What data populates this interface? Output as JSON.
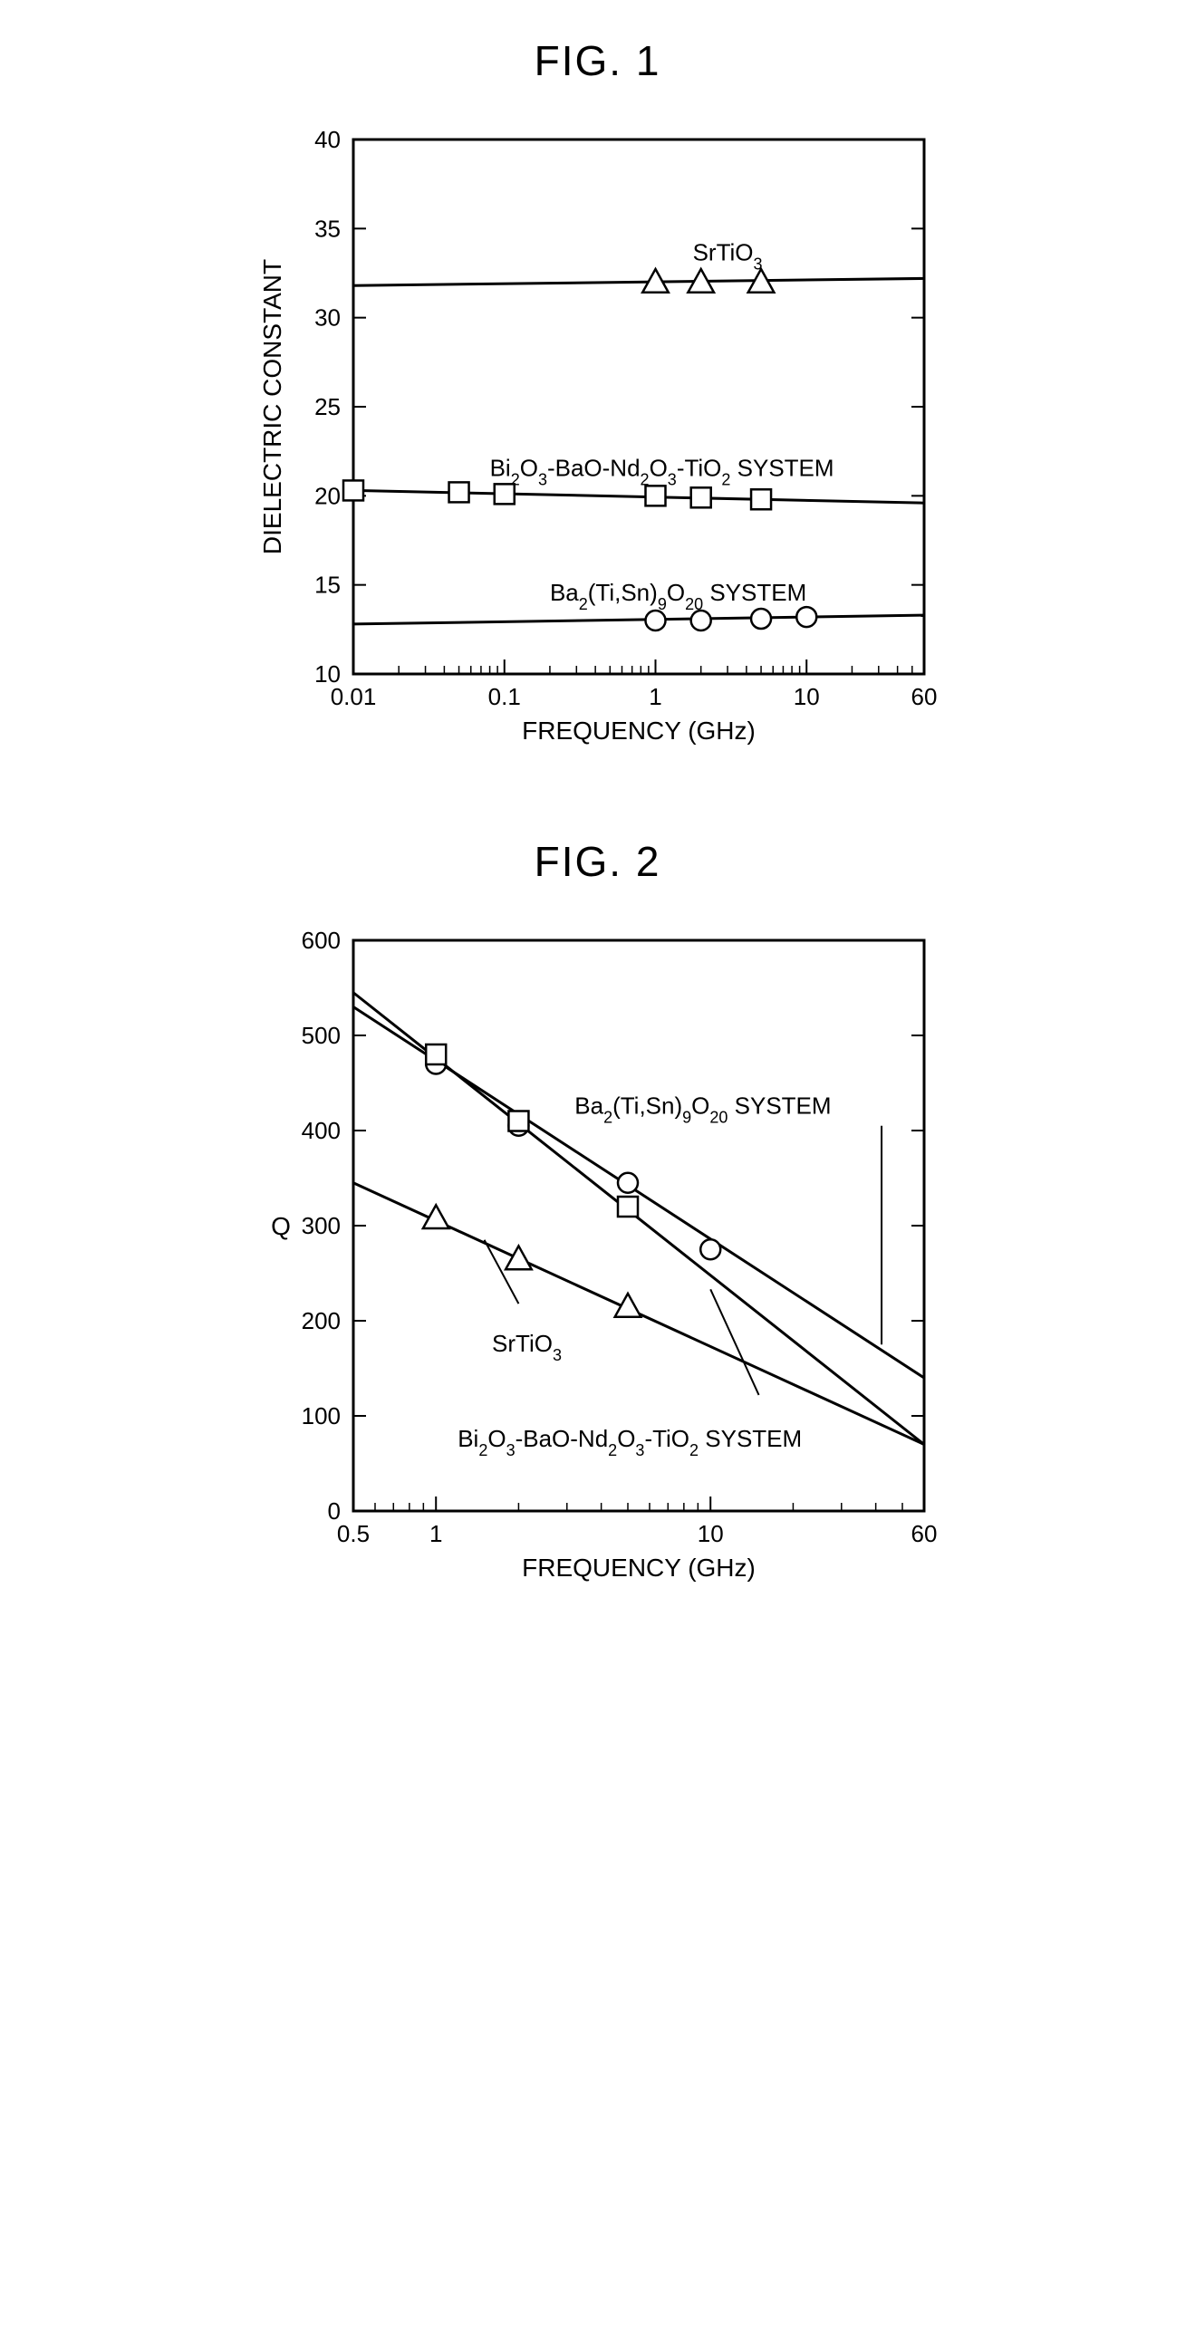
{
  "fig1": {
    "title": "FIG. 1",
    "type": "line",
    "xlabel": "FREQUENCY (GHz)",
    "ylabel": "DIELECTRIC CONSTANT",
    "x_scale": "log",
    "xlim": [
      0.01,
      60
    ],
    "ylim": [
      10,
      40
    ],
    "ytick_step": 5,
    "xticks": [
      0.01,
      0.1,
      1,
      10,
      60
    ],
    "xtick_labels": [
      "0.01",
      "0.1",
      "1",
      "10",
      "60"
    ],
    "yticks": [
      10,
      15,
      20,
      25,
      30,
      35,
      40
    ],
    "ytick_labels": [
      "10",
      "15",
      "20",
      "25",
      "30",
      "35",
      "40"
    ],
    "plot_bg": "#ffffff",
    "axis_color": "#000000",
    "line_width": 3,
    "label_fontsize": 28,
    "tick_fontsize": 26,
    "series": [
      {
        "name": "SrTiO3",
        "label_html": "SrTiO<tspan baseline-shift=\"sub\" font-size=\"18\">3</tspan>",
        "marker": "triangle",
        "line_x": [
          0.01,
          60
        ],
        "line_y": [
          31.8,
          32.2
        ],
        "points_x": [
          1,
          2,
          5
        ],
        "points_y": [
          32,
          32,
          32
        ],
        "label_pos": "above"
      },
      {
        "name": "Bi2O3-BaO-Nd2O3-TiO2 SYSTEM",
        "label_html": "Bi<tspan baseline-shift=\"sub\" font-size=\"18\">2</tspan>O<tspan baseline-shift=\"sub\" font-size=\"18\">3</tspan>-BaO-Nd<tspan baseline-shift=\"sub\" font-size=\"18\">2</tspan>O<tspan baseline-shift=\"sub\" font-size=\"18\">3</tspan>-TiO<tspan baseline-shift=\"sub\" font-size=\"18\">2</tspan> SYSTEM",
        "marker": "square",
        "line_x": [
          0.01,
          60
        ],
        "line_y": [
          20.3,
          19.6
        ],
        "points_x": [
          0.01,
          0.05,
          0.1,
          1,
          2,
          5
        ],
        "points_y": [
          20.3,
          20.2,
          20.1,
          20.0,
          19.9,
          19.8
        ],
        "label_pos": "above"
      },
      {
        "name": "Ba2(Ti,Sn)9O20 SYSTEM",
        "label_html": "Ba<tspan baseline-shift=\"sub\" font-size=\"18\">2</tspan>(Ti,Sn)<tspan baseline-shift=\"sub\" font-size=\"18\">9</tspan>O<tspan baseline-shift=\"sub\" font-size=\"18\">20</tspan> SYSTEM",
        "marker": "circle",
        "line_x": [
          0.01,
          60
        ],
        "line_y": [
          12.8,
          13.3
        ],
        "points_x": [
          1,
          2,
          5,
          10
        ],
        "points_y": [
          13.0,
          13.0,
          13.1,
          13.2
        ],
        "label_pos": "above"
      }
    ]
  },
  "fig2": {
    "title": "FIG. 2",
    "type": "line",
    "xlabel": "FREQUENCY (GHz)",
    "ylabel": "Q",
    "x_scale": "log",
    "xlim": [
      0.5,
      60
    ],
    "ylim": [
      0,
      600
    ],
    "ytick_step": 100,
    "xticks": [
      0.5,
      1,
      10,
      60
    ],
    "xtick_labels": [
      "0.5",
      "1",
      "10",
      "60"
    ],
    "yticks": [
      0,
      100,
      200,
      300,
      400,
      500,
      600
    ],
    "ytick_labels": [
      "0",
      "100",
      "200",
      "300",
      "400",
      "500",
      "600"
    ],
    "plot_bg": "#ffffff",
    "axis_color": "#000000",
    "line_width": 3.5,
    "label_fontsize": 28,
    "tick_fontsize": 26,
    "series": [
      {
        "name": "Ba2(Ti,Sn)9O20 SYSTEM",
        "label_html": "Ba<tspan baseline-shift=\"sub\" font-size=\"18\">2</tspan>(Ti,Sn)<tspan baseline-shift=\"sub\" font-size=\"18\">9</tspan>O<tspan baseline-shift=\"sub\" font-size=\"18\">20</tspan> SYSTEM",
        "marker": "circle",
        "line_x": [
          0.5,
          60
        ],
        "line_y": [
          530,
          140
        ],
        "points_x": [
          1,
          2,
          5,
          10
        ],
        "points_y": [
          470,
          405,
          345,
          275
        ]
      },
      {
        "name": "Bi2O3-BaO-Nd2O3-TiO2 SYSTEM",
        "label_html": "Bi<tspan baseline-shift=\"sub\" font-size=\"18\">2</tspan>O<tspan baseline-shift=\"sub\" font-size=\"18\">3</tspan>-BaO-Nd<tspan baseline-shift=\"sub\" font-size=\"18\">2</tspan>O<tspan baseline-shift=\"sub\" font-size=\"18\">3</tspan>-TiO<tspan baseline-shift=\"sub\" font-size=\"18\">2</tspan> SYSTEM",
        "marker": "square",
        "line_x": [
          0.5,
          60
        ],
        "line_y": [
          545,
          70
        ],
        "points_x": [
          1,
          2,
          5
        ],
        "points_y": [
          480,
          410,
          320
        ]
      },
      {
        "name": "SrTiO3",
        "label_html": "SrTiO<tspan baseline-shift=\"sub\" font-size=\"18\">3</tspan>",
        "marker": "triangle",
        "line_x": [
          0.5,
          60
        ],
        "line_y": [
          345,
          70
        ],
        "points_x": [
          1,
          2,
          5
        ],
        "points_y": [
          308,
          265,
          215
        ]
      }
    ]
  }
}
